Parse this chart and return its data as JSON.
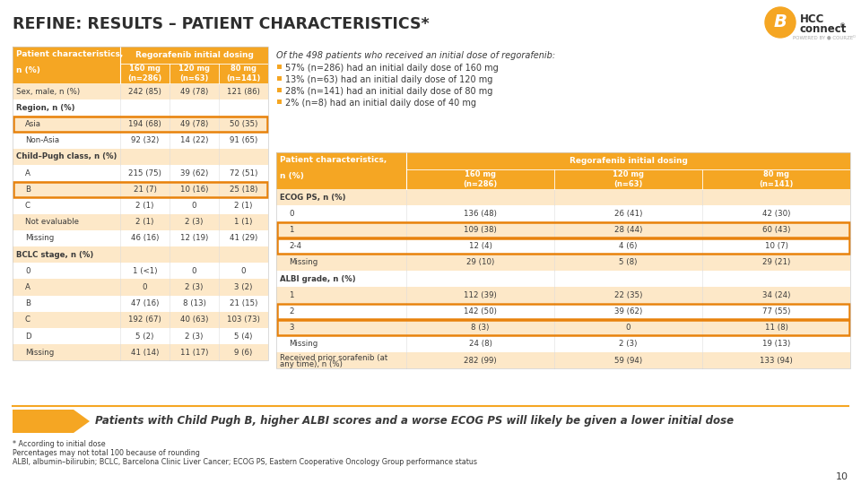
{
  "title": "REFINE: RESULTS – PATIENT CHARACTERISTICS*",
  "bg_color": "#ffffff",
  "orange_header": "#F5A623",
  "orange_light": "#FDE8C8",
  "orange_border": "#E8820C",
  "white": "#ffffff",
  "gray_text": "#3a3a3a",
  "left_table": {
    "cols": [
      "160 mg\n(n=286)",
      "120 mg\n(n=63)",
      "80 mg\n(n=141)"
    ],
    "rows": [
      {
        "label": "Sex, male, n (%)",
        "indent": 0,
        "vals": [
          "242 (85)",
          "49 (78)",
          "121 (86)"
        ],
        "highlight": false,
        "header_row": false
      },
      {
        "label": "Region, n (%)",
        "indent": 0,
        "vals": [
          "",
          "",
          ""
        ],
        "highlight": false,
        "header_row": true
      },
      {
        "label": "Asia",
        "indent": 1,
        "vals": [
          "194 (68)",
          "49 (78)",
          "50 (35)"
        ],
        "highlight": true,
        "header_row": false
      },
      {
        "label": "Non-Asia",
        "indent": 1,
        "vals": [
          "92 (32)",
          "14 (22)",
          "91 (65)"
        ],
        "highlight": false,
        "header_row": false
      },
      {
        "label": "Child–Pugh class, n (%)",
        "indent": 0,
        "vals": [
          "",
          "",
          ""
        ],
        "highlight": false,
        "header_row": true
      },
      {
        "label": "A",
        "indent": 1,
        "vals": [
          "215 (75)",
          "39 (62)",
          "72 (51)"
        ],
        "highlight": false,
        "header_row": false
      },
      {
        "label": "B",
        "indent": 1,
        "vals": [
          "21 (7)",
          "10 (16)",
          "25 (18)"
        ],
        "highlight": true,
        "header_row": false
      },
      {
        "label": "C",
        "indent": 1,
        "vals": [
          "2 (1)",
          "0",
          "2 (1)"
        ],
        "highlight": false,
        "header_row": false
      },
      {
        "label": "Not evaluable",
        "indent": 1,
        "vals": [
          "2 (1)",
          "2 (3)",
          "1 (1)"
        ],
        "highlight": false,
        "header_row": false
      },
      {
        "label": "Missing",
        "indent": 1,
        "vals": [
          "46 (16)",
          "12 (19)",
          "41 (29)"
        ],
        "highlight": false,
        "header_row": false
      },
      {
        "label": "BCLC stage, n (%)",
        "indent": 0,
        "vals": [
          "",
          "",
          ""
        ],
        "highlight": false,
        "header_row": true
      },
      {
        "label": "0",
        "indent": 1,
        "vals": [
          "1 (<1)",
          "0",
          "0"
        ],
        "highlight": false,
        "header_row": false
      },
      {
        "label": "A",
        "indent": 1,
        "vals": [
          "0",
          "2 (3)",
          "3 (2)"
        ],
        "highlight": false,
        "header_row": false
      },
      {
        "label": "B",
        "indent": 1,
        "vals": [
          "47 (16)",
          "8 (13)",
          "21 (15)"
        ],
        "highlight": false,
        "header_row": false
      },
      {
        "label": "C",
        "indent": 1,
        "vals": [
          "192 (67)",
          "40 (63)",
          "103 (73)"
        ],
        "highlight": false,
        "header_row": false
      },
      {
        "label": "D",
        "indent": 1,
        "vals": [
          "5 (2)",
          "2 (3)",
          "5 (4)"
        ],
        "highlight": false,
        "header_row": false
      },
      {
        "label": "Missing",
        "indent": 1,
        "vals": [
          "41 (14)",
          "11 (17)",
          "9 (6)"
        ],
        "highlight": false,
        "header_row": false
      }
    ]
  },
  "right_table": {
    "cols": [
      "160 mg\n(n=286)",
      "120 mg\n(n=63)",
      "80 mg\n(n=141)"
    ],
    "rows": [
      {
        "label": "ECOG PS, n (%)",
        "indent": 0,
        "vals": [
          "",
          "",
          ""
        ],
        "highlight": false,
        "header_row": true
      },
      {
        "label": "0",
        "indent": 1,
        "vals": [
          "136 (48)",
          "26 (41)",
          "42 (30)"
        ],
        "highlight": false,
        "header_row": false
      },
      {
        "label": "1",
        "indent": 1,
        "vals": [
          "109 (38)",
          "28 (44)",
          "60 (43)"
        ],
        "highlight": true,
        "header_row": false
      },
      {
        "label": "2-4",
        "indent": 1,
        "vals": [
          "12 (4)",
          "4 (6)",
          "10 (7)"
        ],
        "highlight": true,
        "header_row": false
      },
      {
        "label": "Missing",
        "indent": 1,
        "vals": [
          "29 (10)",
          "5 (8)",
          "29 (21)"
        ],
        "highlight": false,
        "header_row": false
      },
      {
        "label": "ALBI grade, n (%)",
        "indent": 0,
        "vals": [
          "",
          "",
          ""
        ],
        "highlight": false,
        "header_row": true
      },
      {
        "label": "1",
        "indent": 1,
        "vals": [
          "112 (39)",
          "22 (35)",
          "34 (24)"
        ],
        "highlight": false,
        "header_row": false
      },
      {
        "label": "2",
        "indent": 1,
        "vals": [
          "142 (50)",
          "39 (62)",
          "77 (55)"
        ],
        "highlight": true,
        "header_row": false
      },
      {
        "label": "3",
        "indent": 1,
        "vals": [
          "8 (3)",
          "0",
          "11 (8)"
        ],
        "highlight": true,
        "header_row": false
      },
      {
        "label": "Missing",
        "indent": 1,
        "vals": [
          "24 (8)",
          "2 (3)",
          "19 (13)"
        ],
        "highlight": false,
        "header_row": false
      },
      {
        "label": "Received prior sorafenib (at\nany time), n (%)",
        "indent": 0,
        "vals": [
          "282 (99)",
          "59 (94)",
          "133 (94)"
        ],
        "highlight": false,
        "header_row": false
      }
    ]
  },
  "bullet_intro": "Of the 498 patients who received an initial dose of regorafenib:",
  "bullet_text": [
    "57% (n=286) had an initial daily dose of 160 mg",
    "13% (n=63) had an initial daily dose of 120 mg",
    "28% (n=141) had an initial daily dose of 80 mg",
    "2% (n=8) had an initial daily dose of 40 mg"
  ],
  "arrow_text": "Patients with Child Pugh B, higher ALBI scores and a worse ECOG PS will likely be given a lower initial dose",
  "footnotes": [
    "* According to initial dose",
    "Percentages may not total 100 because of rounding",
    "ALBI, albumin–bilirubin; BCLC, Barcelona Clinic Liver Cancer; ECOG PS, Eastern Cooperative Oncology Group performance status"
  ],
  "page_num": "10"
}
